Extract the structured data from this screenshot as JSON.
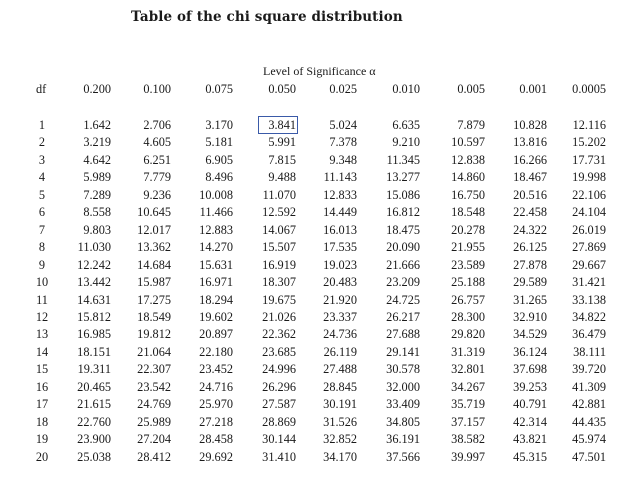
{
  "title": "Table of the chi square distribution",
  "significance_label": "Level of Significance α",
  "df_header": "df",
  "alpha_levels": [
    "0.200",
    "0.100",
    "0.075",
    "0.050",
    "0.025",
    "0.010",
    "0.005",
    "0.001",
    "0.0005"
  ],
  "rows": [
    {
      "df": "1",
      "v": [
        "1.642",
        "2.706",
        "3.170",
        "3.841",
        "5.024",
        "6.635",
        "7.879",
        "10.828",
        "12.116"
      ]
    },
    {
      "df": "2",
      "v": [
        "3.219",
        "4.605",
        "5.181",
        "5.991",
        "7.378",
        "9.210",
        "10.597",
        "13.816",
        "15.202"
      ]
    },
    {
      "df": "3",
      "v": [
        "4.642",
        "6.251",
        "6.905",
        "7.815",
        "9.348",
        "11.345",
        "12.838",
        "16.266",
        "17.731"
      ]
    },
    {
      "df": "4",
      "v": [
        "5.989",
        "7.779",
        "8.496",
        "9.488",
        "11.143",
        "13.277",
        "14.860",
        "18.467",
        "19.998"
      ]
    },
    {
      "df": "5",
      "v": [
        "7.289",
        "9.236",
        "10.008",
        "11.070",
        "12.833",
        "15.086",
        "16.750",
        "20.516",
        "22.106"
      ]
    },
    {
      "df": "6",
      "v": [
        "8.558",
        "10.645",
        "11.466",
        "12.592",
        "14.449",
        "16.812",
        "18.548",
        "22.458",
        "24.104"
      ]
    },
    {
      "df": "7",
      "v": [
        "9.803",
        "12.017",
        "12.883",
        "14.067",
        "16.013",
        "18.475",
        "20.278",
        "24.322",
        "26.019"
      ]
    },
    {
      "df": "8",
      "v": [
        "11.030",
        "13.362",
        "14.270",
        "15.507",
        "17.535",
        "20.090",
        "21.955",
        "26.125",
        "27.869"
      ]
    },
    {
      "df": "9",
      "v": [
        "12.242",
        "14.684",
        "15.631",
        "16.919",
        "19.023",
        "21.666",
        "23.589",
        "27.878",
        "29.667"
      ]
    },
    {
      "df": "10",
      "v": [
        "13.442",
        "15.987",
        "16.971",
        "18.307",
        "20.483",
        "23.209",
        "25.188",
        "29.589",
        "31.421"
      ]
    },
    {
      "df": "11",
      "v": [
        "14.631",
        "17.275",
        "18.294",
        "19.675",
        "21.920",
        "24.725",
        "26.757",
        "31.265",
        "33.138"
      ]
    },
    {
      "df": "12",
      "v": [
        "15.812",
        "18.549",
        "19.602",
        "21.026",
        "23.337",
        "26.217",
        "28.300",
        "32.910",
        "34.822"
      ]
    },
    {
      "df": "13",
      "v": [
        "16.985",
        "19.812",
        "20.897",
        "22.362",
        "24.736",
        "27.688",
        "29.820",
        "34.529",
        "36.479"
      ]
    },
    {
      "df": "14",
      "v": [
        "18.151",
        "21.064",
        "22.180",
        "23.685",
        "26.119",
        "29.141",
        "31.319",
        "36.124",
        "38.111"
      ]
    },
    {
      "df": "15",
      "v": [
        "19.311",
        "22.307",
        "23.452",
        "24.996",
        "27.488",
        "30.578",
        "32.801",
        "37.698",
        "39.720"
      ]
    },
    {
      "df": "16",
      "v": [
        "20.465",
        "23.542",
        "24.716",
        "26.296",
        "28.845",
        "32.000",
        "34.267",
        "39.253",
        "41.309"
      ]
    },
    {
      "df": "17",
      "v": [
        "21.615",
        "24.769",
        "25.970",
        "27.587",
        "30.191",
        "33.409",
        "35.719",
        "40.791",
        "42.881"
      ]
    },
    {
      "df": "18",
      "v": [
        "22.760",
        "25.989",
        "27.218",
        "28.869",
        "31.526",
        "34.805",
        "37.157",
        "42.314",
        "44.435"
      ]
    },
    {
      "df": "19",
      "v": [
        "23.900",
        "27.204",
        "28.458",
        "30.144",
        "32.852",
        "36.191",
        "38.582",
        "43.821",
        "45.974"
      ]
    },
    {
      "df": "20",
      "v": [
        "25.038",
        "28.412",
        "29.692",
        "31.410",
        "34.170",
        "37.566",
        "39.997",
        "45.315",
        "47.501"
      ]
    }
  ]
}
